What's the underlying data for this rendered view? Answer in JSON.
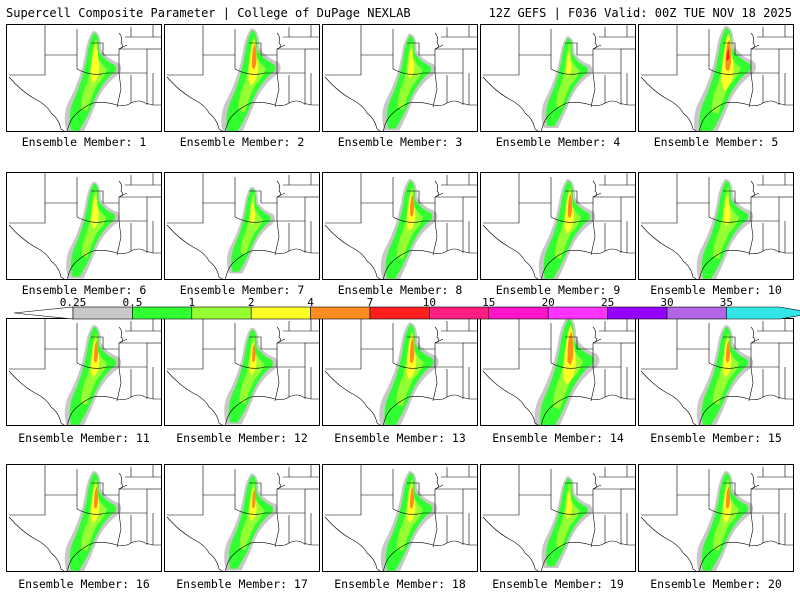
{
  "header": {
    "title": "Supercell Composite Parameter | College of DuPage NEXLAB",
    "run_info": "12Z GEFS | F036 Valid: 00Z TUE NOV 18 2025"
  },
  "colorbar": {
    "labels": [
      "0.25",
      "0.5",
      "1",
      "2",
      "4",
      "7",
      "10",
      "15",
      "20",
      "25",
      "30",
      "35"
    ],
    "colors": {
      "below": "#ffffff",
      "bins": [
        "#c8c8c8",
        "#32ff32",
        "#96ff32",
        "#ffff28",
        "#ff8c1e",
        "#ff1e1e",
        "#ff1e82",
        "#ff14c8",
        "#ff32ff",
        "#9600ff",
        "#b464e6",
        "#32e6e6"
      ]
    }
  },
  "member_label_prefix": "Ensemble Member: ",
  "members": [
    {
      "label": "Ensemble Member: 1",
      "number": 1
    },
    {
      "label": "Ensemble Member: 2",
      "number": 2
    },
    {
      "label": "Ensemble Member: 3",
      "number": 3
    },
    {
      "label": "Ensemble Member: 4",
      "number": 4
    },
    {
      "label": "Ensemble Member: 5",
      "number": 5
    },
    {
      "label": "Ensemble Member: 6",
      "number": 6
    },
    {
      "label": "Ensemble Member: 7",
      "number": 7
    },
    {
      "label": "Ensemble Member: 8",
      "number": 8
    },
    {
      "label": "Ensemble Member: 9",
      "number": 9
    },
    {
      "label": "Ensemble Member: 10",
      "number": 10
    },
    {
      "label": "Ensemble Member: 11",
      "number": 11
    },
    {
      "label": "Ensemble Member: 12",
      "number": 12
    },
    {
      "label": "Ensemble Member: 13",
      "number": 13
    },
    {
      "label": "Ensemble Member: 14",
      "number": 14
    },
    {
      "label": "Ensemble Member: 15",
      "number": 15
    },
    {
      "label": "Ensemble Member: 16",
      "number": 16
    },
    {
      "label": "Ensemble Member: 17",
      "number": 17
    },
    {
      "label": "Ensemble Member: 18",
      "number": 18
    },
    {
      "label": "Ensemble Member: 19",
      "number": 19
    },
    {
      "label": "Ensemble Member: 20",
      "number": 20
    }
  ]
}
